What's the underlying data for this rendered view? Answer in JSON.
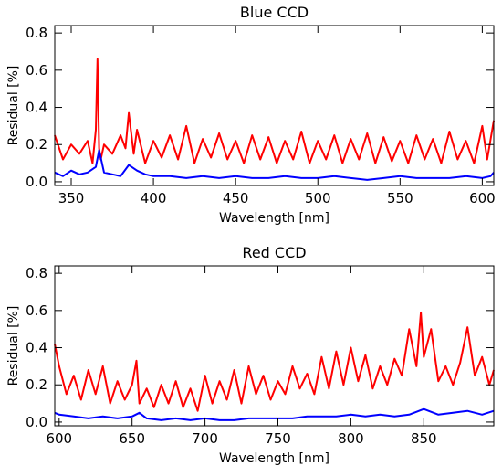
{
  "chart_data": [
    {
      "type": "line",
      "title": "Blue CCD",
      "xlabel": "Wavelength [nm]",
      "ylabel": "Residual [%]",
      "xlim": [
        340,
        607
      ],
      "ylim": [
        -0.02,
        0.84
      ],
      "xticks": [
        350,
        400,
        450,
        500,
        550,
        600
      ],
      "yticks": [
        0.0,
        0.2,
        0.4,
        0.6,
        0.8
      ],
      "yticklabels": [
        "0.0",
        "0.2",
        "0.4",
        "0.6",
        "0.8"
      ],
      "grid": false,
      "series": [
        {
          "color": "#ff0000",
          "x": [
            340,
            345,
            350,
            355,
            360,
            363,
            365,
            366,
            367,
            368,
            370,
            375,
            380,
            383,
            385,
            388,
            390,
            395,
            400,
            405,
            410,
            415,
            420,
            425,
            430,
            435,
            440,
            445,
            450,
            455,
            460,
            465,
            470,
            475,
            480,
            485,
            490,
            495,
            500,
            505,
            510,
            515,
            520,
            525,
            530,
            535,
            540,
            545,
            550,
            555,
            560,
            565,
            570,
            575,
            580,
            585,
            590,
            595,
            600,
            603,
            607
          ],
          "y": [
            0.25,
            0.12,
            0.2,
            0.15,
            0.22,
            0.1,
            0.28,
            0.66,
            0.18,
            0.12,
            0.2,
            0.15,
            0.25,
            0.18,
            0.37,
            0.15,
            0.28,
            0.1,
            0.22,
            0.13,
            0.25,
            0.12,
            0.3,
            0.1,
            0.23,
            0.13,
            0.26,
            0.12,
            0.22,
            0.1,
            0.25,
            0.12,
            0.24,
            0.1,
            0.22,
            0.12,
            0.27,
            0.1,
            0.22,
            0.12,
            0.25,
            0.1,
            0.23,
            0.12,
            0.26,
            0.1,
            0.24,
            0.11,
            0.22,
            0.1,
            0.25,
            0.12,
            0.23,
            0.1,
            0.27,
            0.12,
            0.22,
            0.1,
            0.3,
            0.12,
            0.33
          ]
        },
        {
          "color": "#0000ff",
          "x": [
            340,
            345,
            350,
            355,
            360,
            365,
            367,
            370,
            375,
            380,
            385,
            390,
            395,
            400,
            410,
            420,
            430,
            440,
            450,
            460,
            470,
            480,
            490,
            500,
            510,
            520,
            530,
            540,
            550,
            560,
            570,
            580,
            590,
            600,
            605,
            607
          ],
          "y": [
            0.05,
            0.03,
            0.06,
            0.04,
            0.05,
            0.08,
            0.17,
            0.05,
            0.04,
            0.03,
            0.09,
            0.06,
            0.04,
            0.03,
            0.03,
            0.02,
            0.03,
            0.02,
            0.03,
            0.02,
            0.02,
            0.03,
            0.02,
            0.02,
            0.03,
            0.02,
            0.01,
            0.02,
            0.03,
            0.02,
            0.02,
            0.02,
            0.03,
            0.02,
            0.03,
            0.05
          ]
        }
      ]
    },
    {
      "type": "line",
      "title": "Red CCD",
      "xlabel": "Wavelength [nm]",
      "ylabel": "Residual [%]",
      "xlim": [
        597,
        898
      ],
      "ylim": [
        -0.02,
        0.84
      ],
      "xticks": [
        600,
        650,
        700,
        750,
        800,
        850
      ],
      "yticks": [
        0.0,
        0.2,
        0.4,
        0.6,
        0.8
      ],
      "yticklabels": [
        "0.0",
        "0.2",
        "0.4",
        "0.6",
        "0.8"
      ],
      "grid": false,
      "series": [
        {
          "color": "#ff0000",
          "x": [
            597,
            600,
            605,
            610,
            615,
            620,
            625,
            630,
            635,
            640,
            645,
            650,
            653,
            655,
            660,
            665,
            670,
            675,
            680,
            685,
            690,
            695,
            700,
            705,
            710,
            715,
            720,
            725,
            730,
            735,
            740,
            745,
            750,
            755,
            760,
            765,
            770,
            775,
            780,
            785,
            790,
            795,
            800,
            805,
            810,
            815,
            820,
            825,
            830,
            835,
            840,
            845,
            848,
            850,
            855,
            860,
            865,
            870,
            875,
            880,
            885,
            890,
            895,
            898
          ],
          "y": [
            0.42,
            0.3,
            0.15,
            0.25,
            0.12,
            0.28,
            0.15,
            0.3,
            0.1,
            0.22,
            0.12,
            0.2,
            0.33,
            0.1,
            0.18,
            0.08,
            0.2,
            0.1,
            0.22,
            0.08,
            0.18,
            0.06,
            0.25,
            0.1,
            0.22,
            0.12,
            0.28,
            0.1,
            0.3,
            0.15,
            0.25,
            0.12,
            0.22,
            0.15,
            0.3,
            0.18,
            0.26,
            0.15,
            0.35,
            0.18,
            0.38,
            0.2,
            0.4,
            0.22,
            0.36,
            0.18,
            0.3,
            0.2,
            0.34,
            0.25,
            0.5,
            0.3,
            0.59,
            0.35,
            0.5,
            0.22,
            0.3,
            0.2,
            0.32,
            0.51,
            0.25,
            0.35,
            0.2,
            0.28
          ]
        },
        {
          "color": "#0000ff",
          "x": [
            597,
            600,
            610,
            620,
            630,
            640,
            650,
            655,
            660,
            670,
            680,
            690,
            700,
            710,
            720,
            730,
            740,
            750,
            760,
            770,
            780,
            790,
            800,
            810,
            820,
            830,
            840,
            850,
            860,
            870,
            880,
            890,
            898
          ],
          "y": [
            0.05,
            0.04,
            0.03,
            0.02,
            0.03,
            0.02,
            0.03,
            0.05,
            0.02,
            0.01,
            0.02,
            0.01,
            0.02,
            0.01,
            0.01,
            0.02,
            0.02,
            0.02,
            0.02,
            0.03,
            0.03,
            0.03,
            0.04,
            0.03,
            0.04,
            0.03,
            0.04,
            0.07,
            0.04,
            0.05,
            0.06,
            0.04,
            0.06
          ]
        }
      ]
    }
  ]
}
